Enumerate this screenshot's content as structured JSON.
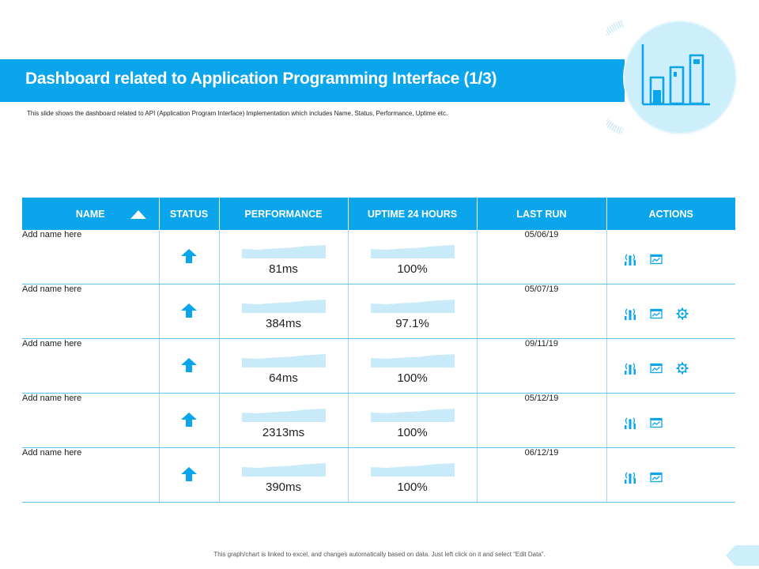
{
  "title": "Dashboard related to Application Programming Interface (1/3)",
  "subtitle": "This slide shows the dashboard related to API (Application Program Interface) Implementation which includes Name, Status, Performance, Uptime etc.",
  "table": {
    "headers": {
      "name": "NAME",
      "status": "STATUS",
      "performance": "PERFORMANCE",
      "uptime": "UPTIME 24 HOURS",
      "last_run": "LAST RUN",
      "actions": "ACTIONS"
    },
    "rows": [
      {
        "name": "Add name here",
        "status": "up",
        "performance": "81ms",
        "uptime": "100%",
        "last_run": "05/06/19",
        "actions": [
          "signal-icon",
          "chart-window-icon"
        ]
      },
      {
        "name": "Add name here",
        "status": "up",
        "performance": "384ms",
        "uptime": "97.1%",
        "last_run": "05/07/19",
        "actions": [
          "signal-icon",
          "chart-window-icon",
          "gear-icon"
        ]
      },
      {
        "name": "Add name here",
        "status": "up",
        "performance": "64ms",
        "uptime": "100%",
        "last_run": "09/11/19",
        "actions": [
          "signal-icon",
          "chart-window-icon",
          "gear-icon"
        ]
      },
      {
        "name": "Add name here",
        "status": "up",
        "performance": "2313ms",
        "uptime": "100%",
        "last_run": "05/12/19",
        "actions": [
          "signal-icon",
          "chart-window-icon"
        ]
      },
      {
        "name": "Add name here",
        "status": "up",
        "performance": "390ms",
        "uptime": "100%",
        "last_run": "06/12/19",
        "actions": [
          "signal-icon",
          "chart-window-icon"
        ]
      }
    ]
  },
  "footer": "This graph/chart is linked to excel, and changes automatically based on data. Just left click on it and select “Edit Data”.",
  "colors": {
    "accent": "#0aa5ea",
    "light_accent": "#cdeefb",
    "sparkline": "#c9ebf9"
  }
}
